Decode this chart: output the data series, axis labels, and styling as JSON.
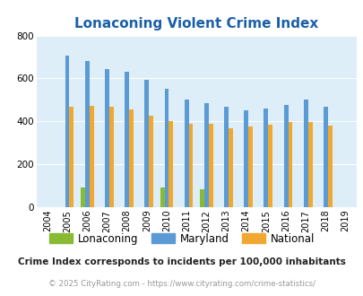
{
  "title": "Lonaconing Violent Crime Index",
  "years": [
    2004,
    2005,
    2006,
    2007,
    2008,
    2009,
    2010,
    2011,
    2012,
    2013,
    2014,
    2015,
    2016,
    2017,
    2018,
    2019
  ],
  "lonaconing": [
    0,
    0,
    90,
    0,
    0,
    0,
    90,
    0,
    85,
    0,
    0,
    0,
    0,
    0,
    0,
    0
  ],
  "maryland": [
    0,
    705,
    680,
    645,
    630,
    595,
    550,
    500,
    485,
    470,
    450,
    460,
    475,
    500,
    468,
    0
  ],
  "national": [
    0,
    468,
    474,
    468,
    455,
    427,
    400,
    387,
    387,
    367,
    375,
    383,
    397,
    397,
    380,
    0
  ],
  "lonaconing_color": "#88bb33",
  "maryland_color": "#5b9bd5",
  "national_color": "#f0a830",
  "bg_color": "#ddeef8",
  "ylim": [
    0,
    800
  ],
  "yticks": [
    0,
    200,
    400,
    600,
    800
  ],
  "subtitle": "Crime Index corresponds to incidents per 100,000 inhabitants",
  "footer": "© 2025 CityRating.com - https://www.cityrating.com/crime-statistics/",
  "title_color": "#1a5fa8",
  "subtitle_color": "#222222",
  "footer_color": "#999999",
  "grid_color": "#ffffff"
}
